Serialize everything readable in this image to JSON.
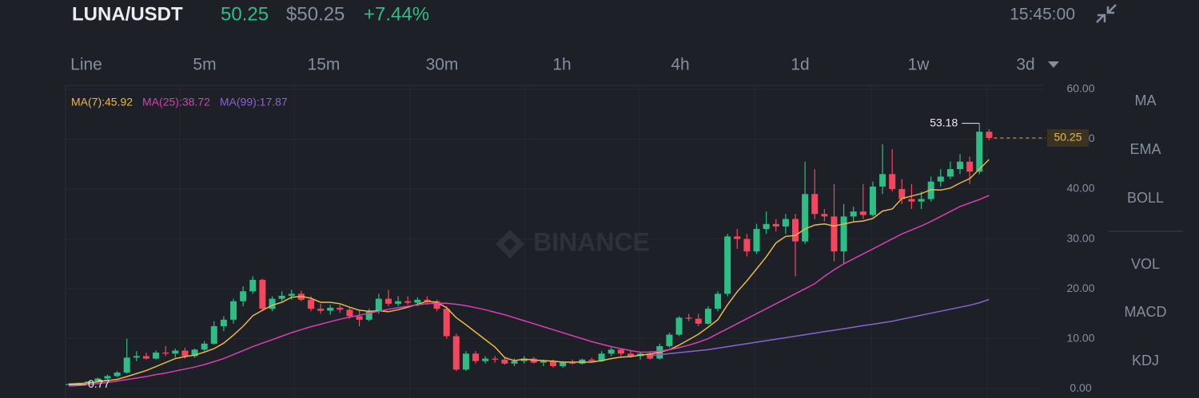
{
  "header": {
    "pair": "LUNA/USDT",
    "price": "50.25",
    "price_usd": "$50.25",
    "change": "+7.44%",
    "time": "15:45:00"
  },
  "intervals": [
    "Line",
    "5m",
    "15m",
    "30m",
    "1h",
    "4h",
    "1d",
    "1w",
    "3d"
  ],
  "indicators": [
    "MA",
    "EMA",
    "BOLL",
    "VOL",
    "MACD",
    "KDJ"
  ],
  "chart_data": {
    "type": "candlestick",
    "watermark": "BINANCE",
    "up_color": "#2ebd85",
    "down_color": "#f6465d",
    "ylim": [
      -1.9,
      60.8
    ],
    "yticks": [
      {
        "value": 0,
        "label": "0.00"
      },
      {
        "value": 10,
        "label": "10.00"
      },
      {
        "value": 20,
        "label": "20.00"
      },
      {
        "value": 30,
        "label": "30.00"
      },
      {
        "value": 40,
        "label": "40.00"
      },
      {
        "value": 50,
        "label": "50.00"
      },
      {
        "value": 60,
        "label": "60.00"
      }
    ],
    "candles": [
      [
        0.8,
        1.0,
        0.77,
        0.9
      ],
      [
        0.9,
        1.2,
        0.8,
        1.1
      ],
      [
        1.1,
        1.5,
        1.0,
        1.4
      ],
      [
        1.4,
        2.2,
        1.3,
        2.0
      ],
      [
        2.0,
        2.8,
        1.8,
        2.5
      ],
      [
        2.5,
        3.5,
        2.3,
        3.2
      ],
      [
        3.2,
        10.0,
        3.0,
        6.2
      ],
      [
        6.2,
        7.5,
        5.5,
        6.5
      ],
      [
        6.5,
        7.2,
        5.8,
        6.0
      ],
      [
        6.0,
        7.6,
        5.8,
        7.2
      ],
      [
        7.2,
        8.5,
        6.5,
        7.0
      ],
      [
        7.0,
        8.0,
        6.2,
        7.6
      ],
      [
        7.6,
        8.2,
        6.0,
        6.5
      ],
      [
        6.5,
        8.0,
        6.2,
        7.8
      ],
      [
        7.8,
        9.5,
        7.5,
        9.0
      ],
      [
        9.0,
        13.5,
        8.8,
        12.5
      ],
      [
        12.5,
        14.5,
        11.5,
        13.8
      ],
      [
        13.8,
        18.0,
        13.0,
        17.5
      ],
      [
        17.5,
        20.5,
        16.5,
        19.5
      ],
      [
        19.5,
        22.5,
        19.0,
        21.8
      ],
      [
        21.8,
        22.0,
        15.5,
        16.0
      ],
      [
        16.0,
        18.5,
        15.5,
        18.0
      ],
      [
        18.0,
        19.5,
        17.5,
        18.6
      ],
      [
        18.6,
        19.8,
        17.8,
        19.0
      ],
      [
        19.0,
        19.6,
        17.5,
        17.8
      ],
      [
        17.8,
        18.5,
        15.5,
        16.0
      ],
      [
        16.0,
        17.0,
        15.0,
        15.6
      ],
      [
        15.6,
        16.8,
        14.8,
        16.2
      ],
      [
        16.2,
        16.8,
        15.2,
        15.8
      ],
      [
        15.8,
        16.2,
        14.0,
        14.5
      ],
      [
        14.5,
        15.8,
        12.5,
        13.8
      ],
      [
        13.8,
        16.0,
        13.5,
        15.5
      ],
      [
        15.5,
        19.0,
        15.0,
        18.0
      ],
      [
        18.0,
        19.8,
        16.5,
        17.0
      ],
      [
        17.0,
        18.5,
        16.5,
        17.5
      ],
      [
        17.5,
        18.5,
        16.8,
        17.2
      ],
      [
        17.2,
        18.3,
        16.5,
        17.8
      ],
      [
        17.8,
        18.5,
        16.8,
        17.5
      ],
      [
        17.5,
        17.8,
        15.5,
        16.0
      ],
      [
        16.0,
        16.5,
        10.0,
        10.5
      ],
      [
        10.5,
        11.0,
        3.5,
        3.8
      ],
      [
        3.8,
        7.5,
        3.5,
        7.0
      ],
      [
        7.0,
        7.5,
        5.0,
        5.5
      ],
      [
        5.5,
        6.5,
        5.0,
        6.0
      ],
      [
        6.0,
        6.5,
        5.2,
        5.8
      ],
      [
        5.8,
        6.2,
        4.8,
        5.0
      ],
      [
        5.0,
        6.0,
        4.5,
        5.5
      ],
      [
        5.5,
        6.5,
        5.0,
        6.0
      ],
      [
        6.0,
        6.3,
        5.0,
        5.2
      ],
      [
        5.2,
        5.8,
        4.5,
        5.5
      ],
      [
        5.5,
        5.8,
        4.2,
        4.5
      ],
      [
        4.5,
        5.5,
        4.2,
        5.2
      ],
      [
        5.2,
        5.8,
        4.8,
        5.0
      ],
      [
        5.0,
        6.0,
        4.8,
        5.8
      ],
      [
        5.8,
        6.2,
        5.2,
        5.5
      ],
      [
        5.5,
        7.5,
        5.3,
        7.0
      ],
      [
        7.0,
        8.2,
        6.5,
        7.8
      ],
      [
        7.8,
        8.0,
        6.5,
        7.0
      ],
      [
        7.0,
        7.5,
        6.2,
        6.5
      ],
      [
        6.5,
        7.2,
        5.8,
        7.0
      ],
      [
        7.0,
        7.5,
        5.8,
        6.0
      ],
      [
        6.0,
        9.0,
        5.8,
        8.5
      ],
      [
        8.5,
        11.2,
        8.2,
        10.8
      ],
      [
        10.8,
        14.5,
        10.5,
        14.2
      ],
      [
        14.2,
        15.0,
        13.5,
        14.0
      ],
      [
        14.0,
        15.0,
        12.5,
        13.0
      ],
      [
        13.0,
        16.5,
        12.8,
        16.0
      ],
      [
        16.0,
        19.5,
        15.5,
        19.0
      ],
      [
        19.0,
        31.0,
        18.5,
        30.5
      ],
      [
        30.5,
        32.0,
        28.0,
        30.0
      ],
      [
        30.0,
        31.0,
        26.5,
        27.5
      ],
      [
        27.5,
        33.0,
        27.0,
        32.0
      ],
      [
        32.0,
        35.5,
        31.0,
        33.0
      ],
      [
        33.0,
        34.0,
        31.5,
        32.5
      ],
      [
        32.5,
        35.0,
        31.0,
        34.0
      ],
      [
        34.0,
        35.0,
        22.5,
        29.5
      ],
      [
        29.5,
        45.5,
        29.0,
        39.0
      ],
      [
        39.0,
        44.0,
        34.0,
        35.0
      ],
      [
        35.0,
        36.0,
        33.5,
        34.5
      ],
      [
        34.5,
        41.0,
        25.5,
        27.5
      ],
      [
        27.5,
        37.0,
        25.0,
        34.5
      ],
      [
        34.5,
        36.5,
        33.5,
        35.5
      ],
      [
        35.5,
        41.0,
        34.0,
        34.8
      ],
      [
        34.8,
        41.5,
        34.5,
        40.5
      ],
      [
        40.5,
        49.0,
        39.0,
        43.0
      ],
      [
        43.0,
        48.0,
        39.5,
        40.0
      ],
      [
        40.0,
        42.0,
        37.0,
        38.0
      ],
      [
        38.0,
        41.0,
        36.0,
        37.5
      ],
      [
        37.5,
        39.5,
        36.0,
        38.0
      ],
      [
        38.0,
        42.5,
        37.5,
        41.5
      ],
      [
        41.5,
        44.0,
        40.5,
        42.5
      ],
      [
        42.5,
        45.5,
        42.0,
        44.0
      ],
      [
        44.0,
        47.0,
        43.0,
        45.5
      ],
      [
        45.5,
        46.5,
        41.0,
        43.5
      ],
      [
        43.5,
        53.18,
        43.0,
        51.5
      ],
      [
        51.5,
        52.0,
        49.8,
        50.25
      ]
    ],
    "series": [
      {
        "name": "MA(7):45.92",
        "color": "#e9b949",
        "values": [
          0.9,
          1.0,
          1.1,
          1.35,
          1.6,
          1.85,
          2.4,
          3.0,
          3.6,
          4.4,
          5.2,
          6.0,
          6.4,
          6.7,
          7.3,
          8.0,
          9.1,
          10.7,
          12.5,
          14.6,
          15.7,
          16.7,
          17.3,
          18.3,
          18.5,
          18.1,
          17.3,
          17.3,
          17.0,
          16.3,
          15.7,
          15.5,
          15.6,
          15.4,
          15.8,
          16.3,
          16.9,
          17.5,
          17.3,
          16.2,
          14.2,
          12.8,
          11.3,
          9.8,
          8.3,
          6.2,
          5.6,
          5.9,
          5.7,
          5.6,
          5.5,
          5.3,
          5.3,
          5.3,
          5.3,
          5.6,
          6.0,
          6.3,
          6.4,
          6.7,
          6.9,
          7.3,
          7.8,
          8.7,
          9.8,
          10.9,
          12.3,
          13.8,
          16.8,
          19.4,
          21.6,
          24.0,
          26.4,
          29.2,
          30.5,
          30.7,
          32.0,
          32.8,
          33.0,
          32.6,
          33.0,
          33.4,
          33.6,
          34.1,
          35.6,
          36.0,
          38.1,
          38.6,
          39.1,
          39.9,
          39.8,
          40.2,
          41.2,
          42.1,
          44.0,
          45.92
        ]
      },
      {
        "name": "MA(25):38.72",
        "color": "#d93fb4",
        "values": [
          0.5,
          0.6,
          0.8,
          1.0,
          1.2,
          1.5,
          1.8,
          2.1,
          2.4,
          2.8,
          3.1,
          3.5,
          3.9,
          4.3,
          4.8,
          5.4,
          6.0,
          6.8,
          7.6,
          8.4,
          9.1,
          9.8,
          10.5,
          11.2,
          11.8,
          12.4,
          12.9,
          13.4,
          13.9,
          14.3,
          14.7,
          15.1,
          15.5,
          15.9,
          16.2,
          16.5,
          16.8,
          17.0,
          17.1,
          17.1,
          16.9,
          16.6,
          16.2,
          15.8,
          15.3,
          14.8,
          14.2,
          13.6,
          13.0,
          12.4,
          11.8,
          11.2,
          10.6,
          10.0,
          9.4,
          8.9,
          8.4,
          8.0,
          7.6,
          7.3,
          7.3,
          7.5,
          7.8,
          8.2,
          8.7,
          9.3,
          10.0,
          11.0,
          12.0,
          13.0,
          14.0,
          15.0,
          16.0,
          17.0,
          18.0,
          19.0,
          20.0,
          21.0,
          22.5,
          23.8,
          25.0,
          26.0,
          27.0,
          28.0,
          29.0,
          30.0,
          31.0,
          31.8,
          32.6,
          33.5,
          34.5,
          35.5,
          36.5,
          37.2,
          37.9,
          38.72
        ]
      },
      {
        "name": "MA(99):17.87",
        "color": "#8a63d2",
        "values": [
          null,
          null,
          null,
          null,
          null,
          null,
          null,
          null,
          null,
          null,
          null,
          null,
          null,
          null,
          null,
          null,
          null,
          null,
          null,
          null,
          null,
          null,
          null,
          null,
          null,
          null,
          null,
          null,
          null,
          null,
          null,
          null,
          null,
          null,
          null,
          null,
          null,
          null,
          null,
          null,
          null,
          null,
          null,
          null,
          null,
          null,
          null,
          null,
          null,
          null,
          null,
          null,
          null,
          null,
          null,
          null,
          null,
          null,
          null,
          null,
          6.6,
          6.8,
          7.0,
          7.2,
          7.4,
          7.6,
          7.8,
          8.1,
          8.4,
          8.7,
          9.0,
          9.3,
          9.6,
          9.9,
          10.2,
          10.5,
          10.8,
          11.1,
          11.4,
          11.7,
          12.0,
          12.3,
          12.6,
          12.9,
          13.2,
          13.5,
          13.9,
          14.3,
          14.7,
          15.1,
          15.5,
          15.9,
          16.3,
          16.7,
          17.2,
          17.87
        ]
      }
    ]
  }
}
